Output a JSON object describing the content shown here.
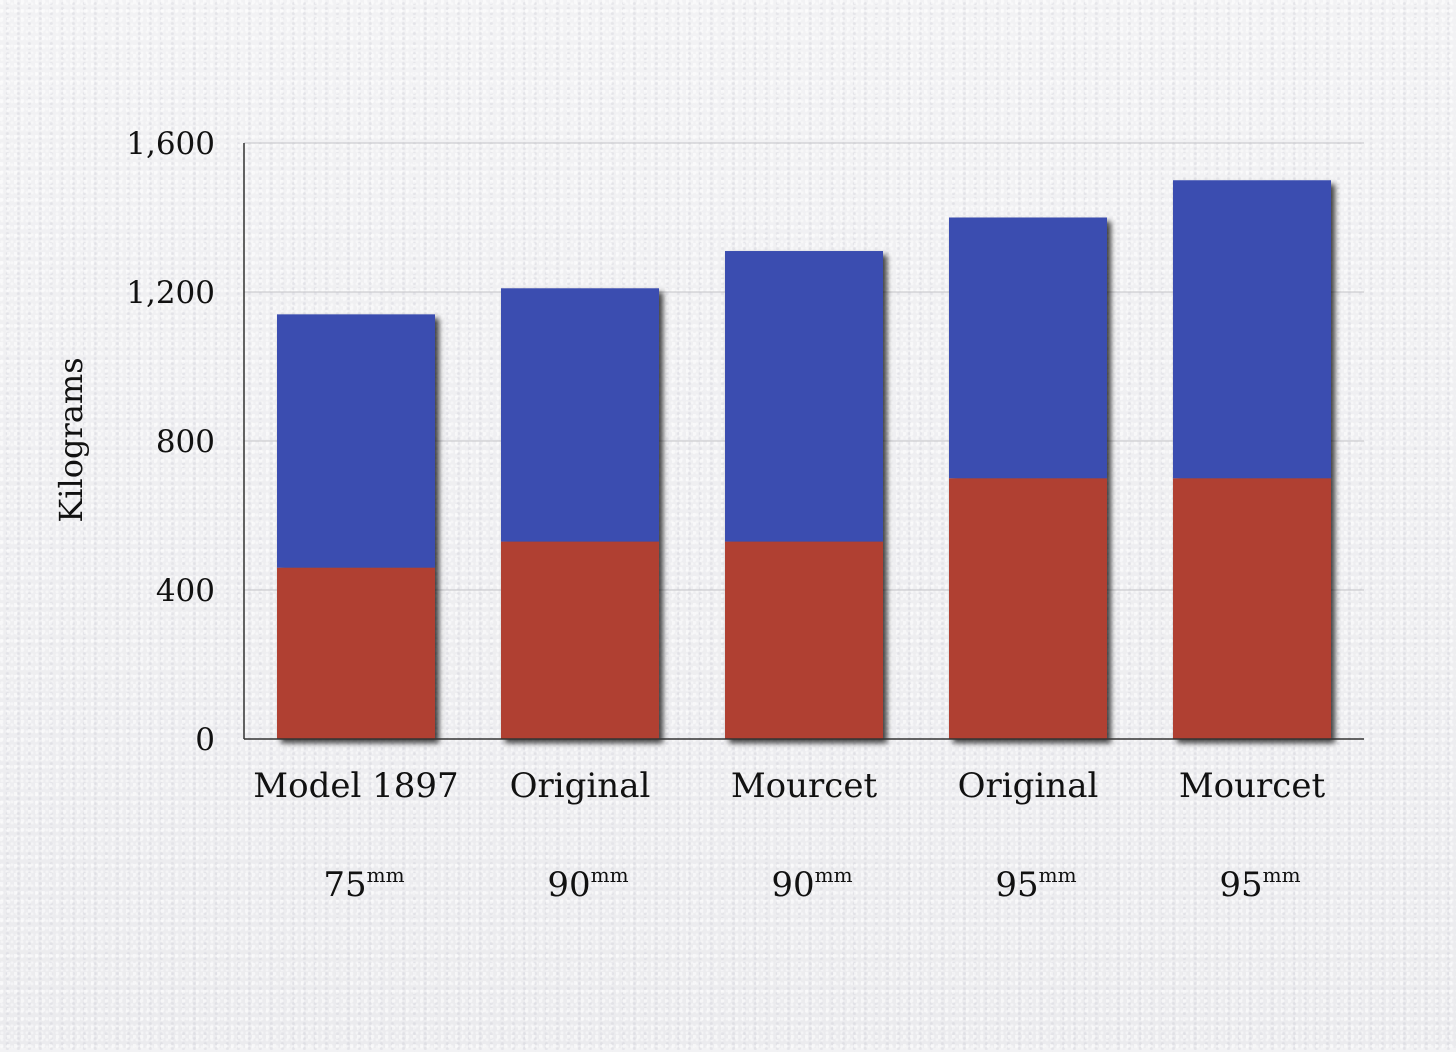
{
  "chart_data": {
    "type": "bar",
    "stacked": true,
    "ylabel": "Kilograms",
    "ylim": [
      0,
      1600
    ],
    "yticks": [
      "0",
      "400",
      "800",
      "1,200",
      "1,600"
    ],
    "ytick_values": [
      0,
      400,
      800,
      1200,
      1600
    ],
    "grid": true,
    "categories": [
      "Model 1897",
      "Original",
      "Mourcet",
      "Original",
      "Mourcet"
    ],
    "calibers": [
      {
        "number": "75",
        "unit": "mm"
      },
      {
        "number": "90",
        "unit": "mm"
      },
      {
        "number": "90",
        "unit": "mm"
      },
      {
        "number": "95",
        "unit": "mm"
      },
      {
        "number": "95",
        "unit": "mm"
      }
    ],
    "series": [
      {
        "values": [
          460,
          530,
          530,
          700,
          700
        ],
        "color": "#b04030"
      },
      {
        "values": [
          680,
          680,
          780,
          700,
          800
        ],
        "color": "#3a4db0"
      }
    ]
  }
}
